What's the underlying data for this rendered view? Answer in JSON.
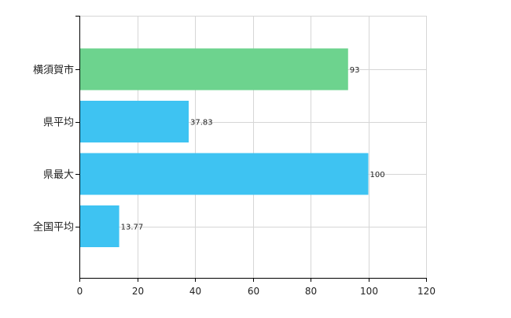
{
  "chart_data": {
    "type": "bar",
    "orientation": "horizontal",
    "categories": [
      "横須賀市",
      "県平均",
      "県最大",
      "全国平均"
    ],
    "values": [
      93,
      37.83,
      100,
      13.77
    ],
    "value_labels": [
      "93",
      "37.83",
      "100",
      "13.77"
    ],
    "bar_colors": [
      "#6dd38e",
      "#3ec3f2",
      "#3ec3f2",
      "#3ec3f2"
    ],
    "xlim": [
      0,
      120
    ],
    "x_ticks": [
      0,
      20,
      40,
      60,
      80,
      100,
      120
    ],
    "x_tick_labels": [
      "0",
      "20",
      "40",
      "60",
      "80",
      "100",
      "120"
    ],
    "grid": true,
    "legend": "none",
    "title": "",
    "xlabel": "",
    "ylabel": ""
  },
  "colors": {
    "grid": "#d6d6d6",
    "axis": "#000000",
    "text": "#222222"
  }
}
